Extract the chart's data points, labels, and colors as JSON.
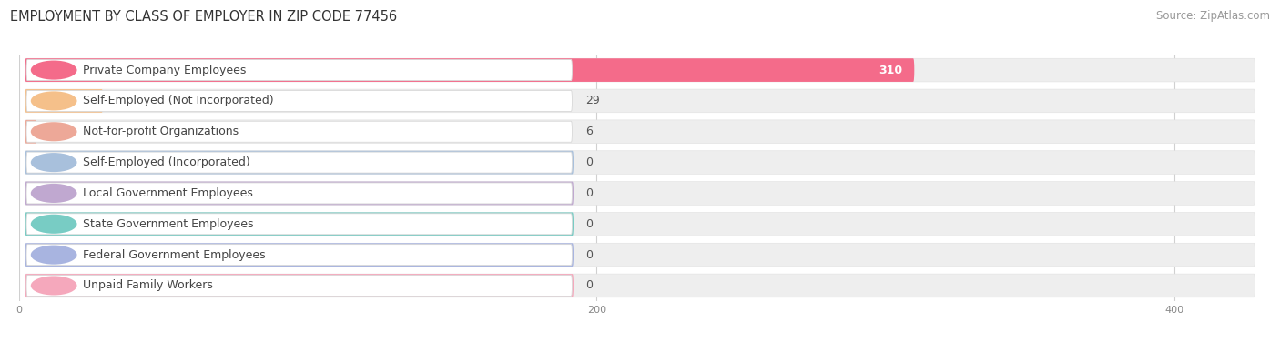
{
  "title": "EMPLOYMENT BY CLASS OF EMPLOYER IN ZIP CODE 77456",
  "source": "Source: ZipAtlas.com",
  "categories": [
    "Private Company Employees",
    "Self-Employed (Not Incorporated)",
    "Not-for-profit Organizations",
    "Self-Employed (Incorporated)",
    "Local Government Employees",
    "State Government Employees",
    "Federal Government Employees",
    "Unpaid Family Workers"
  ],
  "values": [
    310,
    29,
    6,
    0,
    0,
    0,
    0,
    0
  ],
  "bar_colors": [
    "#f46b8a",
    "#f5c08a",
    "#eda898",
    "#a8c0dc",
    "#c0a8d0",
    "#78ccc4",
    "#a8b4e0",
    "#f5a8bc"
  ],
  "xlim": [
    0,
    430
  ],
  "xticks": [
    0,
    200,
    400
  ],
  "title_fontsize": 10.5,
  "source_fontsize": 8.5,
  "bar_label_fontsize": 9,
  "category_fontsize": 9
}
